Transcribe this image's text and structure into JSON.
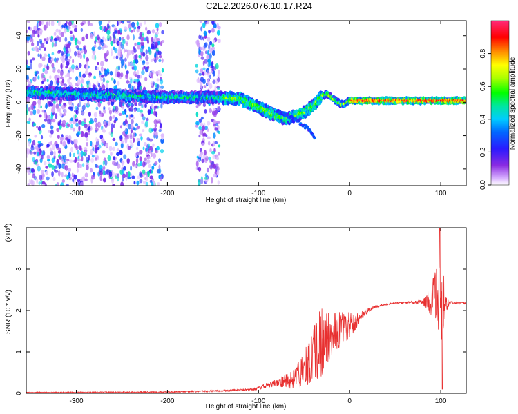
{
  "title": "C2E2.2026.076.10.17.R24",
  "chart_data": [
    {
      "type": "heatmap",
      "xlabel": "Height of straight line (km)",
      "ylabel": "Frequency (Hz)",
      "xlim": [
        -355,
        128
      ],
      "ylim": [
        -50,
        49
      ],
      "x_ticks": [
        -300,
        -200,
        -100,
        0,
        100
      ],
      "y_ticks": [
        -40,
        -20,
        0,
        20,
        40
      ],
      "x_tick_labels": [
        "-300",
        "-200",
        "-100",
        "0",
        "100"
      ],
      "y_tick_labels": [
        "-40",
        "-20",
        "0",
        "20",
        "40"
      ],
      "colorbar": {
        "label": "Normalized spectral amplitude",
        "range": [
          0,
          1
        ],
        "ticks": [
          0.0,
          0.2,
          0.4,
          0.6,
          0.8
        ],
        "tick_labels": [
          "0.0",
          "0.2",
          "0.4",
          "0.6",
          "0.8"
        ]
      },
      "ridge": {
        "x": [
          -355,
          -300,
          -250,
          -200,
          -150,
          -120,
          -100,
          -85,
          -70,
          -60,
          -50,
          -40,
          -35,
          -30,
          -25,
          -20,
          -15,
          -10,
          -5,
          0,
          20,
          50,
          80,
          100,
          128
        ],
        "y": [
          6,
          5,
          4,
          3,
          3,
          2,
          -3,
          -7,
          -10,
          -8,
          -6,
          -2,
          1,
          4,
          5,
          3,
          1,
          -1,
          -1,
          1,
          1,
          1,
          1,
          1,
          1
        ]
      },
      "secondary_branch": {
        "x": [
          -80,
          -65,
          -55,
          -45,
          -38
        ],
        "y": [
          -5,
          -9,
          -12,
          -16,
          -21
        ]
      },
      "noise_bands": [
        {
          "x_range": [
            -355,
            -205
          ],
          "level": 0.45
        },
        {
          "x_range": [
            -168,
            -143
          ],
          "level": 0.45
        }
      ],
      "grid": false
    },
    {
      "type": "line",
      "xlabel": "Height of straight line (km)",
      "ylabel": "SNR (10 * v/v)",
      "y_scale_label": "(x10",
      "y_scale_exp": "4",
      "y_scale_close": ")",
      "xlim": [
        -355,
        128
      ],
      "ylim": [
        0,
        4
      ],
      "x_ticks": [
        -300,
        -200,
        -100,
        0,
        100
      ],
      "y_ticks": [
        0,
        1,
        2,
        3
      ],
      "x_tick_labels": [
        "-300",
        "-200",
        "-100",
        "0",
        "100"
      ],
      "y_tick_labels": [
        "0",
        "1",
        "2",
        "3"
      ],
      "series": [
        {
          "color": "#e83030",
          "envelope_x": [
            -355,
            -200,
            -160,
            -140,
            -120,
            -105,
            -100,
            -90,
            -80,
            -70,
            -60,
            -55,
            -50,
            -45,
            -40,
            -35,
            -30,
            -25,
            -20,
            -15,
            -10,
            -5,
            0,
            5,
            10,
            15,
            20,
            30,
            40,
            50,
            60,
            70,
            80,
            85,
            90,
            95,
            98,
            100,
            103,
            106,
            110,
            115,
            128
          ],
          "envelope_y": [
            0.02,
            0.03,
            0.05,
            0.06,
            0.08,
            0.1,
            0.13,
            0.2,
            0.25,
            0.3,
            0.35,
            0.45,
            0.6,
            0.75,
            1.0,
            1.15,
            1.25,
            1.35,
            1.4,
            1.5,
            1.55,
            1.6,
            1.65,
            1.7,
            1.8,
            1.9,
            2.0,
            2.1,
            2.15,
            2.18,
            2.19,
            2.2,
            2.2,
            2.2,
            2.25,
            2.35,
            2.3,
            2.2,
            2.15,
            2.18,
            2.2,
            2.18,
            2.18
          ],
          "noise_x": [
            -355,
            -110,
            -90,
            -70,
            -55,
            -45,
            -40,
            -35,
            -30,
            -25,
            -20,
            -15,
            -10,
            -5,
            0,
            10,
            20,
            30,
            60,
            80,
            85,
            90,
            95,
            98,
            100,
            103,
            106,
            110,
            128
          ],
          "noise_amp": [
            0.01,
            0.02,
            0.06,
            0.15,
            0.35,
            0.55,
            0.7,
            0.8,
            0.85,
            0.65,
            0.55,
            0.5,
            0.45,
            0.4,
            0.3,
            0.15,
            0.06,
            0.03,
            0.02,
            0.05,
            0.25,
            0.4,
            0.7,
            1.0,
            1.2,
            0.8,
            0.3,
            0.03,
            0.03
          ],
          "peak": {
            "x": 99,
            "y": 4.0
          },
          "dip": {
            "x": 102,
            "y": 0.1
          },
          "plateau": 2.18
        }
      ],
      "grid": false
    }
  ]
}
